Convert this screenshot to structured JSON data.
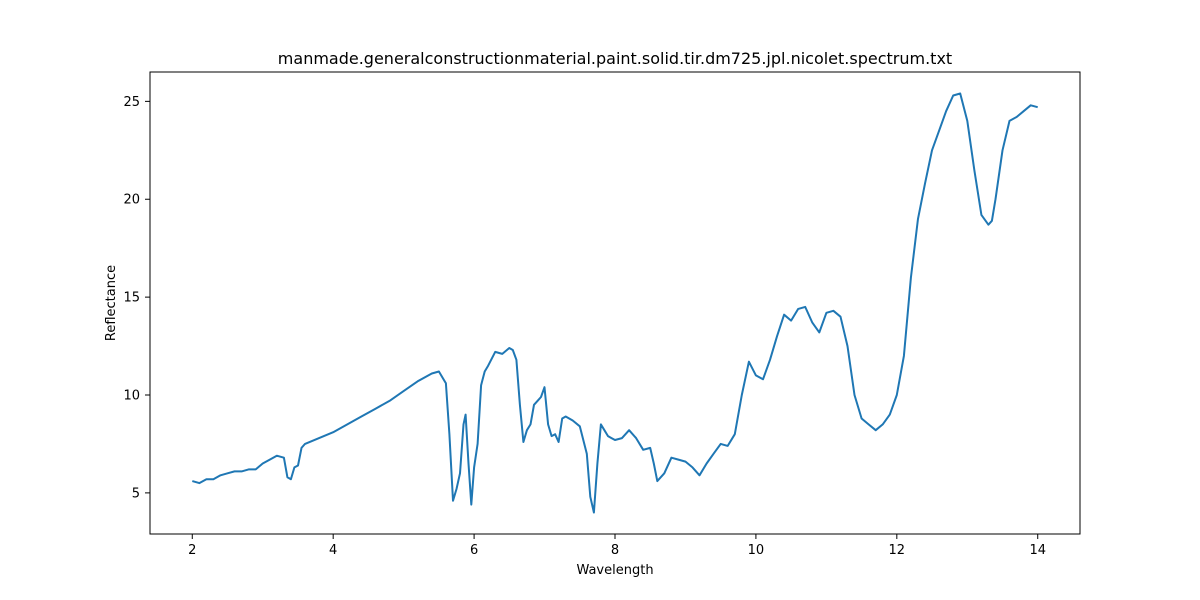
{
  "chart_data": {
    "type": "line",
    "title": "manmade.generalconstructionmaterial.paint.solid.tir.dm725.jpl.nicolet.spectrum.txt",
    "xlabel": "Wavelength",
    "ylabel": "Reflectance",
    "xlim": [
      1.4,
      14.6
    ],
    "ylim": [
      2.9,
      26.5
    ],
    "xticks": [
      2,
      4,
      6,
      8,
      10,
      12,
      14
    ],
    "yticks": [
      5,
      10,
      15,
      20,
      25
    ],
    "grid": false,
    "legend": "none",
    "series": [
      {
        "color": "#1f77b4",
        "x": [
          2.0,
          2.1,
          2.2,
          2.3,
          2.4,
          2.5,
          2.6,
          2.7,
          2.8,
          2.9,
          3.0,
          3.1,
          3.2,
          3.3,
          3.35,
          3.4,
          3.45,
          3.5,
          3.55,
          3.6,
          3.8,
          4.0,
          4.2,
          4.4,
          4.6,
          4.8,
          5.0,
          5.2,
          5.4,
          5.5,
          5.6,
          5.65,
          5.7,
          5.75,
          5.8,
          5.85,
          5.88,
          5.92,
          5.96,
          6.0,
          6.05,
          6.1,
          6.15,
          6.2,
          6.3,
          6.4,
          6.5,
          6.55,
          6.6,
          6.65,
          6.7,
          6.75,
          6.8,
          6.85,
          6.9,
          6.95,
          7.0,
          7.05,
          7.1,
          7.15,
          7.2,
          7.25,
          7.3,
          7.35,
          7.4,
          7.5,
          7.6,
          7.65,
          7.7,
          7.75,
          7.8,
          7.85,
          7.9,
          7.95,
          8.0,
          8.1,
          8.2,
          8.3,
          8.4,
          8.5,
          8.55,
          8.6,
          8.7,
          8.8,
          8.9,
          9.0,
          9.1,
          9.2,
          9.3,
          9.4,
          9.5,
          9.6,
          9.7,
          9.8,
          9.9,
          10.0,
          10.1,
          10.2,
          10.3,
          10.4,
          10.5,
          10.6,
          10.7,
          10.8,
          10.9,
          11.0,
          11.1,
          11.2,
          11.3,
          11.4,
          11.5,
          11.6,
          11.7,
          11.8,
          11.9,
          12.0,
          12.1,
          12.2,
          12.3,
          12.4,
          12.5,
          12.6,
          12.7,
          12.8,
          12.9,
          13.0,
          13.1,
          13.2,
          13.3,
          13.35,
          13.4,
          13.5,
          13.6,
          13.7,
          13.8,
          13.9,
          14.0
        ],
        "values": [
          5.6,
          5.5,
          5.7,
          5.7,
          5.9,
          6.0,
          6.1,
          6.1,
          6.2,
          6.2,
          6.5,
          6.7,
          6.9,
          6.8,
          5.8,
          5.7,
          6.3,
          6.4,
          7.3,
          7.5,
          7.8,
          8.1,
          8.5,
          8.9,
          9.3,
          9.7,
          10.2,
          10.7,
          11.1,
          11.2,
          10.6,
          8.0,
          4.6,
          5.2,
          6.0,
          8.5,
          9.0,
          6.5,
          4.4,
          6.3,
          7.5,
          10.5,
          11.2,
          11.5,
          12.2,
          12.1,
          12.4,
          12.3,
          11.8,
          9.5,
          7.6,
          8.2,
          8.5,
          9.5,
          9.7,
          9.9,
          10.4,
          8.5,
          7.9,
          8.0,
          7.6,
          8.8,
          8.9,
          8.8,
          8.7,
          8.4,
          7.0,
          4.8,
          4.0,
          6.5,
          8.5,
          8.2,
          7.9,
          7.8,
          7.7,
          7.8,
          8.2,
          7.8,
          7.2,
          7.3,
          6.5,
          5.6,
          6.0,
          6.8,
          6.7,
          6.6,
          6.3,
          5.9,
          6.5,
          7.0,
          7.5,
          7.4,
          8.0,
          10.0,
          11.7,
          11.0,
          10.8,
          11.8,
          13.0,
          14.1,
          13.8,
          14.4,
          14.5,
          13.7,
          13.2,
          14.2,
          14.3,
          14.0,
          12.5,
          10.0,
          8.8,
          8.5,
          8.2,
          8.5,
          9.0,
          10.0,
          12.0,
          16.0,
          19.0,
          20.8,
          22.5,
          23.5,
          24.5,
          25.3,
          25.4,
          24.0,
          21.5,
          19.2,
          18.7,
          18.9,
          20.0,
          22.5,
          24.0,
          24.2,
          24.5,
          24.8,
          24.7
        ]
      }
    ]
  }
}
